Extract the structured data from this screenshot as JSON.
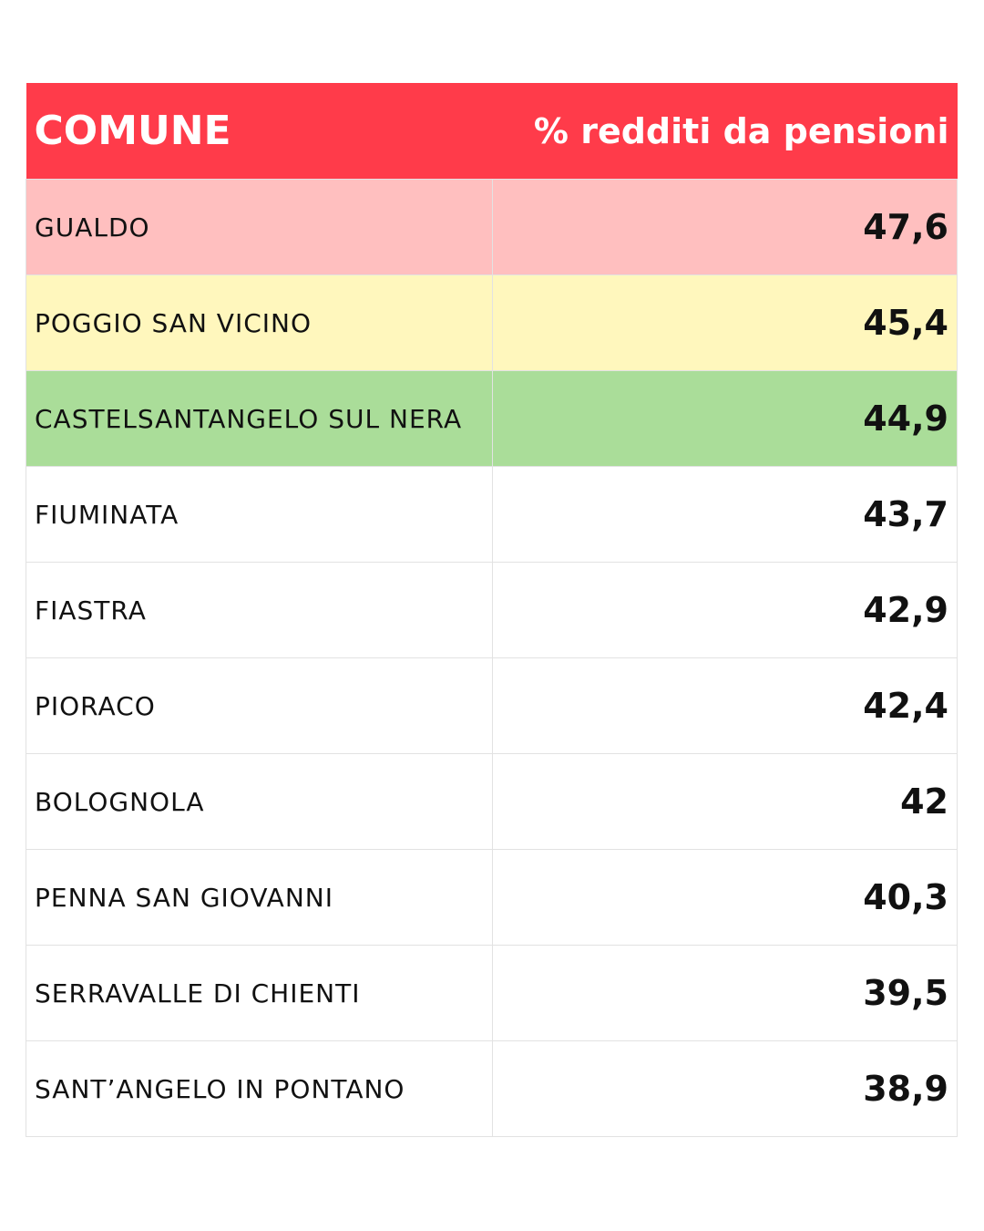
{
  "table": {
    "header": [
      "COMUNE",
      "% redditi da pensioni"
    ],
    "rows": [
      [
        "GUALDO",
        "47,6"
      ],
      [
        "POGGIO SAN VICINO",
        "45,4"
      ],
      [
        "CASTELSANTANGELO SUL NERA",
        "44,9"
      ],
      [
        "FIUMINATA",
        "43,7"
      ],
      [
        "FIASTRA",
        "42,9"
      ],
      [
        "PIORACO",
        "42,4"
      ],
      [
        "BOLOGNOLA",
        "42"
      ],
      [
        "PENNA SAN GIOVANNI",
        "40,3"
      ],
      [
        "SERRAVALLE DI CHIENTI",
        "39,5"
      ],
      [
        "SANT’ANGELO IN PONTANO",
        "38,9"
      ]
    ]
  }
}
